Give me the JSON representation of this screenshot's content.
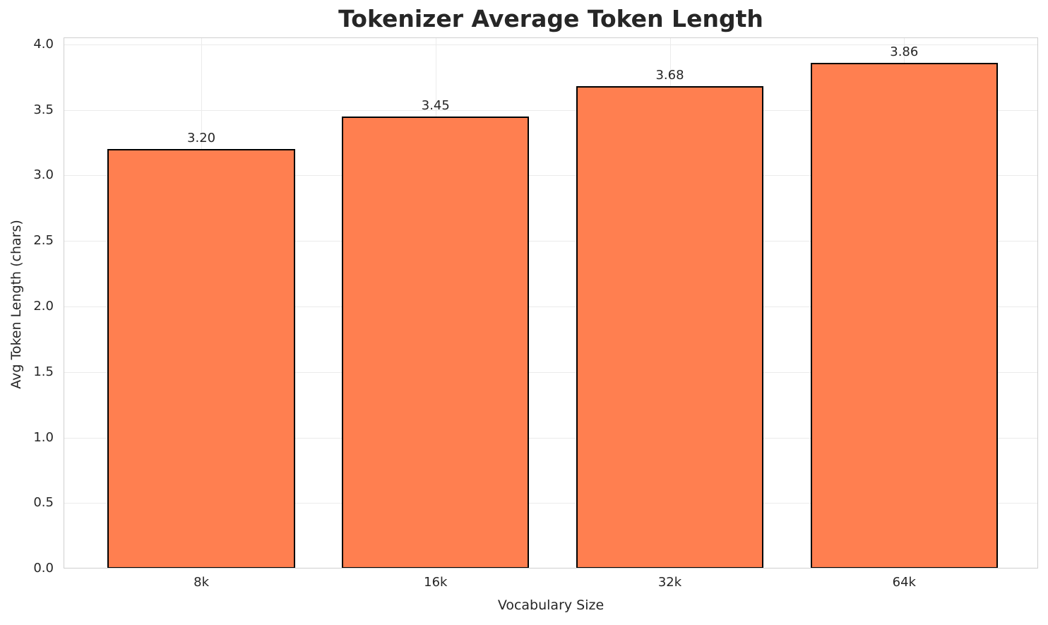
{
  "chart_data": {
    "type": "bar",
    "title": "Tokenizer Average Token Length",
    "xlabel": "Vocabulary Size",
    "ylabel": "Avg Token Length (chars)",
    "categories": [
      "8k",
      "16k",
      "32k",
      "64k"
    ],
    "values": [
      3.2,
      3.45,
      3.68,
      3.86
    ],
    "bar_labels": [
      "3.20",
      "3.45",
      "3.68",
      "3.86"
    ],
    "yticks": [
      0.0,
      0.5,
      1.0,
      1.5,
      2.0,
      2.5,
      3.0,
      3.5,
      4.0
    ],
    "ytick_labels": [
      "0.0",
      "0.5",
      "1.0",
      "1.5",
      "2.0",
      "2.5",
      "3.0",
      "3.5",
      "4.0"
    ],
    "ylim": [
      0,
      4.053
    ],
    "xlim": [
      -0.588,
      3.572
    ],
    "bar_width": 0.8,
    "grid": true,
    "legend": "none",
    "colors": {
      "bar_fill": "#FF7F50",
      "bar_edge": "#000000",
      "grid_line": "#ebebeb",
      "spine": "#cfcfcf",
      "text": "#262626",
      "background": "#ffffff"
    }
  }
}
